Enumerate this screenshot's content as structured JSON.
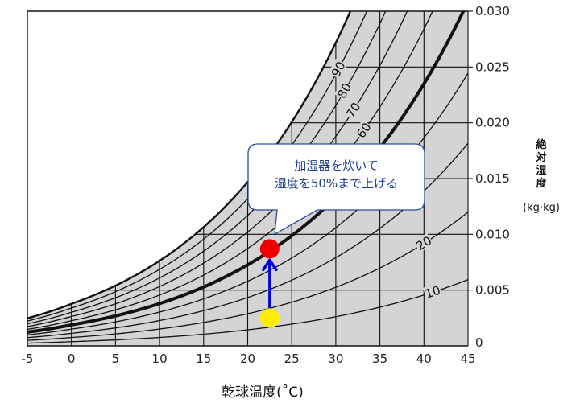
{
  "chart_data": {
    "type": "line",
    "xlabel": "乾球温度(˚C)",
    "ylabel_chars": [
      "絶",
      "対",
      "湿",
      "度"
    ],
    "ylabel_unit": "(kg·kg)",
    "x_ticks": [
      "-5",
      "0",
      "5",
      "10",
      "15",
      "20",
      "25",
      "30",
      "35",
      "40",
      "45"
    ],
    "y_ticks": [
      "0",
      "0.005",
      "0.010",
      "0.015",
      "0.020",
      "0.025",
      "0.030"
    ],
    "xlim": [
      -5,
      45
    ],
    "ylim": [
      0,
      0.03
    ],
    "grid_x": [
      0,
      5,
      10,
      15,
      20,
      25,
      30,
      35,
      40
    ],
    "grid_y": [
      0.005,
      0.01,
      0.015,
      0.02,
      0.025
    ],
    "relative_humidity_curves": [
      10,
      20,
      30,
      40,
      50,
      60,
      70,
      80,
      90,
      100
    ],
    "highlighted_curve_rh": 50,
    "curve_labels": [
      {
        "text": "90",
        "rh": 90,
        "x": 30.3
      },
      {
        "text": "80",
        "rh": 80,
        "x": 31.0
      },
      {
        "text": "70",
        "rh": 70,
        "x": 32.0
      },
      {
        "text": "60",
        "rh": 60,
        "x": 33.2
      },
      {
        "text": "20",
        "rh": 20,
        "x": 40.0
      },
      {
        "text": "10",
        "rh": 10,
        "x": 41.0
      }
    ],
    "points": [
      {
        "name": "start",
        "x": 22.5,
        "y": 0.0025,
        "color": "#ffee00"
      },
      {
        "name": "end",
        "x": 22.5,
        "y": 0.0087,
        "color": "#ee0000"
      }
    ],
    "arrow_color": "#0000dd",
    "annotation": {
      "lines": [
        "加湿器を炊いて",
        "湿度を50%まで上げる"
      ],
      "anchor_x": 22.5,
      "anchor_y": 0.0087
    },
    "colors": {
      "background": "#d4d4d4",
      "outside": "#ffffff",
      "curve": "#111111",
      "annotation_border": "#2a4a9a",
      "annotation_text": "#1a3d8f"
    }
  }
}
